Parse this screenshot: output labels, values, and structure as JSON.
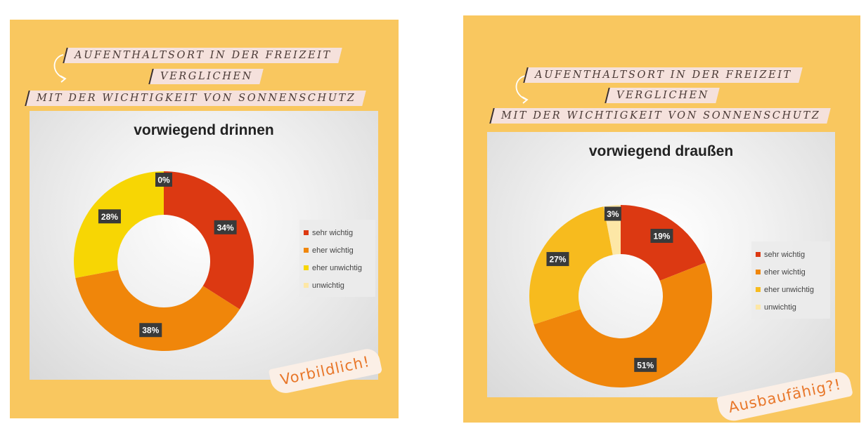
{
  "headline": {
    "line1": "AUFENTHALTSORT IN DER FREIZEIT",
    "line2": "VERGLICHEN",
    "line3": "MIT DER WICHTIGKEIT VON SONNENSCHUTZ"
  },
  "colors": {
    "panel_bg": "#f9c75f",
    "sehr_wichtig": "#dc3912",
    "eher_wichtig": "#f0860a",
    "eher_unwichtig_left": "#f7d604",
    "eher_unwichtig_right": "#f7bb1e",
    "unwichtig": "#fde7a6",
    "stamp_text": "#e8772a"
  },
  "charts": [
    {
      "stamp": "Vorbildlich!",
      "chart_data": {
        "type": "pie",
        "title": "vorwiegend drinnen",
        "categories": [
          "sehr wichtig",
          "eher wichtig",
          "eher unwichtig",
          "unwichtig"
        ],
        "values": [
          34,
          38,
          28,
          0
        ],
        "labels": [
          "34%",
          "38%",
          "28%",
          "0%"
        ],
        "legend_position": "right"
      }
    },
    {
      "stamp": "Ausbaufähig?!",
      "chart_data": {
        "type": "pie",
        "title": "vorwiegend draußen",
        "categories": [
          "sehr wichtig",
          "eher wichtig",
          "eher unwichtig",
          "unwichtig"
        ],
        "values": [
          19,
          51,
          27,
          3
        ],
        "labels": [
          "19%",
          "51%",
          "27%",
          "3%"
        ],
        "legend_position": "right"
      }
    }
  ]
}
